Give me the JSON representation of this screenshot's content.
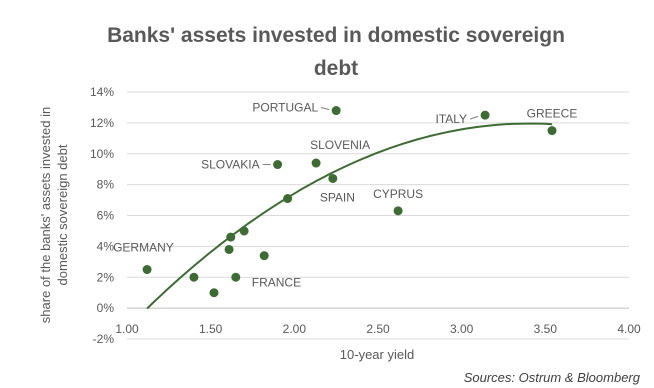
{
  "chart_data": {
    "type": "scatter",
    "title_lines": [
      "Banks' assets invested in domestic sovereign",
      "debt"
    ],
    "xlabel": "10-year yield",
    "ylabel_lines": [
      "share of the banks' assets invested in",
      "domestic sovereign debt"
    ],
    "xlim": [
      1.0,
      4.0
    ],
    "ylim": [
      -2,
      14
    ],
    "x_ticks": [
      1.0,
      1.5,
      2.0,
      2.5,
      3.0,
      3.5,
      4.0
    ],
    "x_tick_labels": [
      "1.00",
      "1.50",
      "2.00",
      "2.50",
      "3.00",
      "3.50",
      "4.00"
    ],
    "y_ticks": [
      -2,
      0,
      2,
      4,
      6,
      8,
      10,
      12,
      14
    ],
    "y_tick_labels": [
      "-2%",
      "0%",
      "2%",
      "4%",
      "6%",
      "8%",
      "10%",
      "12%",
      "14%"
    ],
    "gridlines": "horizontal",
    "legend": "none",
    "points": [
      {
        "x": 1.12,
        "y": 2.5,
        "label": "GERMANY"
      },
      {
        "x": 1.4,
        "y": 2.0,
        "label": ""
      },
      {
        "x": 1.52,
        "y": 1.0,
        "label": ""
      },
      {
        "x": 1.61,
        "y": 3.8,
        "label": ""
      },
      {
        "x": 1.62,
        "y": 4.6,
        "label": ""
      },
      {
        "x": 1.65,
        "y": 2.0,
        "label": "FRANCE"
      },
      {
        "x": 1.7,
        "y": 5.0,
        "label": ""
      },
      {
        "x": 1.82,
        "y": 3.4,
        "label": ""
      },
      {
        "x": 1.9,
        "y": 9.3,
        "label": "SLOVAKIA"
      },
      {
        "x": 1.96,
        "y": 7.1,
        "label": ""
      },
      {
        "x": 2.13,
        "y": 9.4,
        "label": "SLOVENIA"
      },
      {
        "x": 2.23,
        "y": 8.4,
        "label": "SPAIN"
      },
      {
        "x": 2.25,
        "y": 12.8,
        "label": "PORTUGAL"
      },
      {
        "x": 2.62,
        "y": 6.3,
        "label": "CYPRUS"
      },
      {
        "x": 3.14,
        "y": 12.5,
        "label": "ITALY"
      },
      {
        "x": 3.54,
        "y": 11.5,
        "label": "GREECE"
      }
    ],
    "trendline": {
      "type": "polynomial",
      "order": 2,
      "x_range": [
        1.12,
        3.54
      ],
      "samples": [
        [
          1.12,
          0.0
        ],
        [
          1.5,
          3.6
        ],
        [
          2.0,
          7.4
        ],
        [
          2.5,
          10.1
        ],
        [
          3.0,
          11.6
        ],
        [
          3.54,
          11.9
        ]
      ]
    },
    "colors": {
      "point": "#3e6b34",
      "trend": "#3e6b34",
      "grid": "#d9d9d9",
      "axis": "#bfbfbf"
    }
  },
  "source_note": "Sources: Ostrum & Bloomberg"
}
